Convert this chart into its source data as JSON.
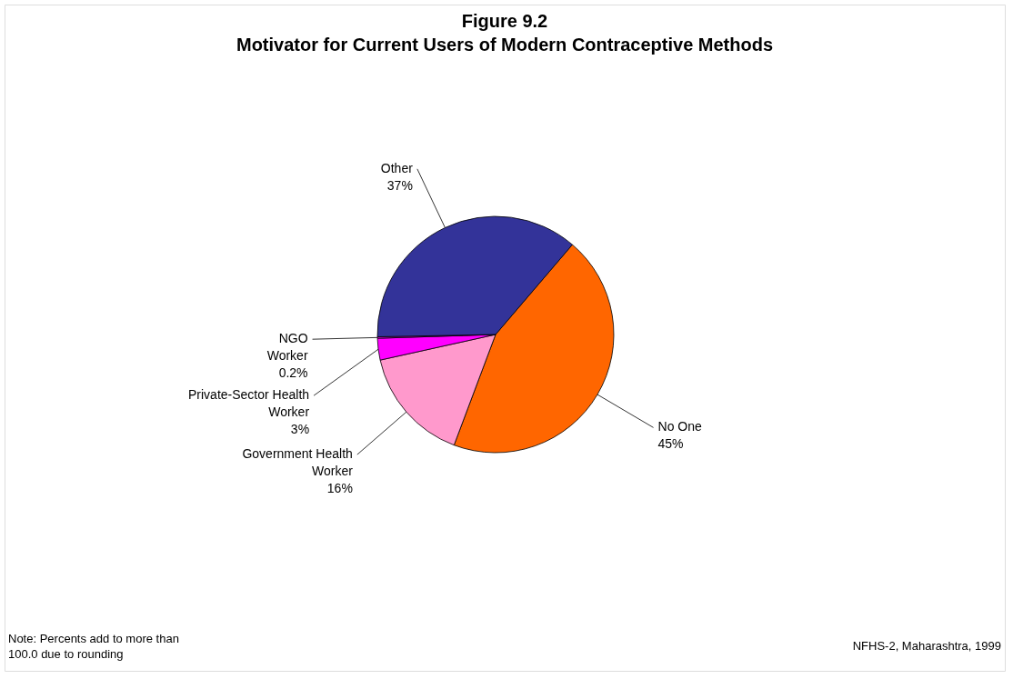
{
  "chart_data": {
    "type": "pie",
    "title": "Figure 9.2",
    "subtitle": "Motivator for Current Users of Modern Contraceptive Methods",
    "categories": [
      "No One",
      "Government Health Worker",
      "Private-Sector Health Worker",
      "NGO Worker",
      "Other"
    ],
    "values": [
      45,
      16,
      3,
      0.2,
      37
    ],
    "value_labels": [
      "45%",
      "16%",
      "3%",
      "0.2%",
      "37%"
    ],
    "colors": [
      "#ff6600",
      "#ff99cc",
      "#ff00ff",
      "#ff00ff",
      "#333399"
    ],
    "annotations": [
      {
        "text": "Note: Percents add to more than 100.0 due to rounding"
      },
      {
        "text": "NFHS-2, Maharashtra, 1999"
      }
    ]
  }
}
